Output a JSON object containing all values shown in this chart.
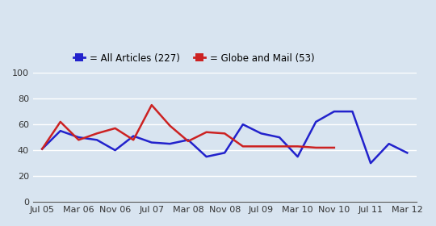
{
  "legend_labels": [
    "= All Articles (227)",
    "= Globe and Mail (53)"
  ],
  "legend_colors": [
    "#2222cc",
    "#cc2222"
  ],
  "background_color": "#d8e4f0",
  "x_tick_labels": [
    "Jul 05",
    "Mar 06",
    "Nov 06",
    "Jul 07",
    "Mar 08",
    "Nov 08",
    "Jul 09",
    "Mar 10",
    "Nov 10",
    "Jul 11",
    "Mar 12"
  ],
  "ylim": [
    0,
    100
  ],
  "yticks": [
    0,
    20,
    40,
    60,
    80,
    100
  ],
  "all_articles_x": [
    0,
    1,
    2,
    3,
    4,
    5,
    6,
    7,
    8,
    9,
    10,
    11,
    12,
    13,
    14,
    15,
    16,
    17,
    18,
    19,
    20
  ],
  "all_articles_y": [
    41,
    55,
    50,
    48,
    40,
    51,
    46,
    45,
    48,
    35,
    38,
    60,
    53,
    50,
    35,
    62,
    70,
    70,
    30,
    45,
    38
  ],
  "globe_mail_x": [
    0,
    1,
    2,
    3,
    4,
    5,
    6,
    7,
    8,
    9,
    10,
    11,
    12,
    13,
    14,
    15,
    16
  ],
  "globe_mail_y": [
    41,
    62,
    48,
    53,
    57,
    48,
    75,
    59,
    47,
    54,
    53,
    43,
    43,
    43,
    43,
    42,
    42
  ],
  "line_color_blue": "#2222cc",
  "line_color_red": "#cc2222",
  "line_width": 1.8,
  "grid_color": "#ffffff",
  "axis_color": "#333333",
  "tick_fontsize": 8,
  "legend_fontsize": 8.5
}
